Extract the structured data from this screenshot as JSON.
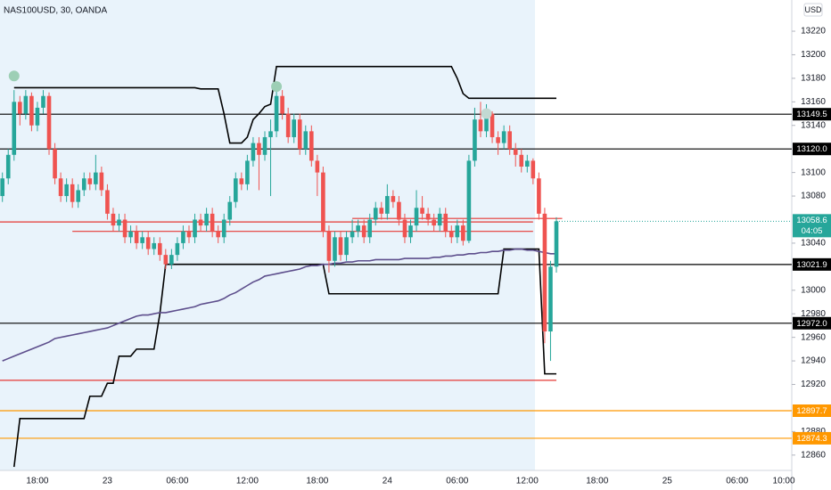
{
  "chart_data": {
    "type": "candlestick",
    "title": "NAS100USD, 30, OANDA",
    "currency": "USD",
    "countdown": "04:05",
    "categories": [
      null,
      null,
      null,
      null,
      null,
      null,
      "18:00",
      null,
      null,
      null,
      null,
      null,
      null,
      null,
      null,
      null,
      null,
      null,
      "23",
      null,
      null,
      null,
      null,
      null,
      null,
      null,
      null,
      null,
      null,
      null,
      "06:00",
      null,
      null,
      null,
      null,
      null,
      null,
      null,
      null,
      null,
      null,
      null,
      "12:00",
      null,
      null,
      null,
      null,
      null,
      null,
      null,
      null,
      null,
      null,
      null,
      "18:00",
      null,
      null,
      null,
      null,
      null,
      null,
      null,
      null,
      null,
      null,
      null,
      "24",
      null,
      null,
      null,
      null,
      null,
      null,
      null,
      null,
      null,
      null,
      null,
      "06:00",
      null,
      null,
      null,
      null,
      null,
      null,
      null,
      null,
      null,
      null,
      null,
      "12:00",
      null,
      null,
      null,
      null,
      null,
      null,
      null,
      null,
      null,
      null,
      null,
      "18:00",
      null,
      null,
      null,
      null,
      null,
      null,
      null,
      null,
      null,
      null,
      null,
      "25",
      null,
      null,
      null,
      null,
      null,
      null,
      null,
      null,
      null,
      null,
      null,
      "06:00",
      null,
      null,
      null,
      null,
      null,
      null,
      null,
      "10:00",
      null
    ],
    "open": [
      13080,
      13095,
      13115,
      13160,
      13150,
      13165,
      13140,
      13155,
      13165,
      13120,
      13095,
      13080,
      13090,
      13075,
      13085,
      13095,
      13090,
      13100,
      13085,
      13065,
      13055,
      13060,
      13045,
      13050,
      13040,
      13045,
      13035,
      13040,
      13030,
      13022,
      13030,
      13040,
      13050,
      13045,
      13060,
      13055,
      13065,
      13050,
      13045,
      13060,
      13075,
      13095,
      13090,
      13110,
      13125,
      13115,
      13130,
      13135,
      13165,
      13150,
      13130,
      13145,
      13120,
      13135,
      13110,
      13100,
      13050,
      13025,
      13045,
      13030,
      13045,
      13050,
      13055,
      13045,
      13060,
      13070,
      13065,
      13080,
      13075,
      13060,
      13045,
      13055,
      13070,
      13065,
      13060,
      13055,
      13065,
      13050,
      13045,
      13055,
      13042,
      13110,
      13145,
      13135,
      13150,
      13130,
      13125,
      13135,
      13120,
      13115,
      13105,
      13110,
      13095,
      13065,
      12965,
      13020,
      null,
      null,
      null,
      null,
      null,
      null,
      null,
      null,
      null,
      null,
      null,
      null,
      null,
      null,
      null,
      null,
      null,
      null,
      null,
      null,
      null,
      null,
      null,
      null,
      null,
      null,
      null,
      null,
      null,
      null,
      null,
      null,
      null,
      null,
      null,
      null,
      null,
      null,
      null,
      null
    ],
    "high": [
      13100,
      13120,
      13170,
      13165,
      13170,
      13168,
      13160,
      13170,
      13168,
      13125,
      13100,
      13095,
      13095,
      13090,
      13100,
      13100,
      13115,
      13105,
      13090,
      13070,
      13065,
      13065,
      13055,
      13055,
      13050,
      13050,
      13045,
      13045,
      13035,
      13035,
      13045,
      13055,
      13055,
      13065,
      13065,
      13070,
      13070,
      13055,
      13065,
      13080,
      13100,
      13100,
      13115,
      13130,
      13130,
      13135,
      13145,
      13175,
      13170,
      13155,
      13150,
      13150,
      13140,
      13140,
      13115,
      13105,
      13055,
      13050,
      13050,
      13050,
      13060,
      13060,
      13060,
      13065,
      13075,
      13075,
      13090,
      13085,
      13080,
      13065,
      13060,
      13085,
      13080,
      13070,
      13065,
      13070,
      13070,
      13055,
      13060,
      13060,
      13115,
      13155,
      13160,
      13158,
      13152,
      13135,
      13140,
      13140,
      13125,
      13120,
      13115,
      13112,
      13100,
      13070,
      13025,
      13062,
      null,
      null,
      null,
      null,
      null,
      null,
      null,
      null,
      null,
      null,
      null,
      null,
      null,
      null,
      null,
      null,
      null,
      null,
      null,
      null,
      null,
      null,
      null,
      null,
      null,
      null,
      null,
      null,
      null,
      null,
      null,
      null,
      null,
      null,
      null,
      null,
      null,
      null,
      null,
      null
    ],
    "low": [
      13075,
      13090,
      13110,
      13140,
      13145,
      13135,
      13135,
      13150,
      13115,
      13090,
      13075,
      13075,
      13070,
      13070,
      13080,
      13085,
      13085,
      13080,
      13060,
      13050,
      13050,
      13040,
      13040,
      13035,
      13035,
      13030,
      13030,
      13025,
      13018,
      13018,
      13025,
      13035,
      13040,
      13040,
      13050,
      13050,
      13045,
      13040,
      13040,
      13055,
      13070,
      13085,
      13085,
      13105,
      13085,
      13110,
      13080,
      13130,
      13145,
      13125,
      13125,
      13115,
      13115,
      13105,
      13080,
      13045,
      13015,
      13020,
      13025,
      13025,
      13040,
      13045,
      13040,
      13040,
      13055,
      13060,
      13060,
      13070,
      13055,
      13040,
      13040,
      13050,
      13060,
      13055,
      13050,
      13050,
      13045,
      13040,
      13040,
      13038,
      13040,
      13105,
      13130,
      13130,
      13125,
      13115,
      13120,
      13115,
      13105,
      13100,
      13100,
      13090,
      13060,
      12955,
      12940,
      13015,
      null,
      null,
      null,
      null,
      null,
      null,
      null,
      null,
      null,
      null,
      null,
      null,
      null,
      null,
      null,
      null,
      null,
      null,
      null,
      null,
      null,
      null,
      null,
      null,
      null,
      null,
      null,
      null,
      null,
      null,
      null,
      null,
      null,
      null,
      null,
      null,
      null,
      null,
      null,
      null
    ],
    "close": [
      13095,
      13115,
      13160,
      13150,
      13165,
      13140,
      13155,
      13165,
      13120,
      13095,
      13080,
      13090,
      13075,
      13085,
      13095,
      13090,
      13100,
      13085,
      13065,
      13055,
      13060,
      13045,
      13050,
      13040,
      13045,
      13035,
      13040,
      13030,
      13022,
      13030,
      13040,
      13050,
      13045,
      13060,
      13055,
      13065,
      13050,
      13045,
      13060,
      13075,
      13095,
      13090,
      13110,
      13125,
      13115,
      13130,
      13135,
      13165,
      13150,
      13130,
      13145,
      13120,
      13135,
      13110,
      13100,
      13050,
      13025,
      13045,
      13030,
      13045,
      13050,
      13055,
      13045,
      13060,
      13070,
      13065,
      13080,
      13075,
      13060,
      13045,
      13055,
      13070,
      13065,
      13060,
      13055,
      13065,
      13050,
      13045,
      13055,
      13042,
      13110,
      13145,
      13135,
      13150,
      13130,
      13125,
      13135,
      13120,
      13115,
      13105,
      13110,
      13095,
      13065,
      12965,
      13020,
      13058.6,
      null,
      null,
      null,
      null,
      null,
      null,
      null,
      null,
      null,
      null,
      null,
      null,
      null,
      null,
      null,
      null,
      null,
      null,
      null,
      null,
      null,
      null,
      null,
      null,
      null,
      null,
      null,
      null,
      null,
      null,
      null,
      null,
      null,
      null,
      null,
      null,
      null,
      null,
      null,
      null
    ],
    "up_color": "#26a69a",
    "down_color": "#ef5350",
    "overlays": [
      {
        "color": "#000000",
        "values": [
          null,
          null,
          13172,
          13172,
          13172,
          13172,
          13172,
          13172,
          13172,
          13172,
          13172,
          13172,
          13172,
          13172,
          13172,
          13172,
          13172,
          13172,
          13172,
          13172,
          13172,
          13172,
          13172,
          13172,
          13172,
          13172,
          13172,
          13172,
          13172,
          13172,
          13172,
          13172,
          13172,
          13172,
          13171,
          13171,
          13171,
          13171,
          13150,
          13125,
          13125,
          13125,
          13130,
          13145,
          13150,
          13156,
          13158,
          13190,
          13190,
          13190,
          13190,
          13190,
          13190,
          13190,
          13190,
          13190,
          13190,
          13190,
          13190,
          13190,
          13190,
          13190,
          13190,
          13190,
          13190,
          13190,
          13190,
          13190,
          13190,
          13190,
          13190,
          13190,
          13190,
          13190,
          13190,
          13190,
          13190,
          13190,
          13180,
          13167,
          13163,
          13163,
          13163,
          13163,
          13163,
          13163,
          13163,
          13163,
          13163,
          13163,
          13163,
          13163,
          13163,
          13163,
          13163,
          13163,
          null,
          null,
          null,
          null,
          null,
          null,
          null,
          null,
          null,
          null,
          null,
          null,
          null,
          null,
          null,
          null,
          null,
          null,
          null,
          null,
          null,
          null,
          null,
          null,
          null,
          null,
          null,
          null,
          null,
          null,
          null,
          null,
          null,
          null,
          null,
          null,
          null,
          null,
          null,
          null
        ]
      },
      {
        "color": "#000000",
        "values": [
          null,
          null,
          12850,
          12891,
          12891,
          12891,
          12891,
          12891,
          12891,
          12891,
          12891,
          12891,
          12891,
          12891,
          12891,
          12910,
          12910,
          12910,
          12921,
          12921,
          12944,
          12944,
          12944,
          12950,
          12950,
          12950,
          12950,
          12980,
          13022,
          13022,
          13022,
          13022,
          13022,
          13022,
          13022,
          13022,
          13022,
          13022,
          13022,
          13022,
          13022,
          13022,
          13022,
          13022,
          13022,
          13022,
          13022,
          13022,
          13022,
          13022,
          13022,
          13022,
          13022,
          13022,
          13022,
          13022,
          12997,
          12997,
          12997,
          12997,
          12997,
          12997,
          12997,
          12997,
          12997,
          12997,
          12997,
          12997,
          12997,
          12997,
          12997,
          12997,
          12997,
          12997,
          12997,
          12997,
          12997,
          12997,
          12997,
          12997,
          12997,
          12997,
          12997,
          12997,
          12997,
          12997,
          13035,
          13035,
          13035,
          13035,
          13035,
          13035,
          13035,
          12929,
          12929,
          12929,
          null,
          null,
          null,
          null,
          null,
          null,
          null,
          null,
          null,
          null,
          null,
          null,
          null,
          null,
          null,
          null,
          null,
          null,
          null,
          null,
          null,
          null,
          null,
          null,
          null,
          null,
          null,
          null,
          null,
          null,
          null,
          null,
          null,
          null,
          null,
          null,
          null,
          null,
          null,
          null
        ]
      },
      {
        "color": "#5d4e8c",
        "values": [
          12940,
          12942,
          12944,
          12946,
          12948,
          12950,
          12952,
          12954,
          12956,
          12959,
          12960,
          12961,
          12962,
          12963,
          12964,
          12965,
          12966,
          12967,
          12968,
          12970,
          12972,
          12974,
          12976,
          12978,
          12979,
          12979,
          12980,
          12981,
          12981,
          12982,
          12983,
          12984,
          12985,
          12986,
          12988,
          12989,
          12990,
          12991,
          12993,
          12996,
          12998,
          13001,
          13004,
          13007,
          13009,
          13012,
          13013,
          13014,
          13015,
          13016,
          13017,
          13018,
          13020,
          13021,
          13021,
          13022,
          13022,
          13023,
          13023,
          13024,
          13024,
          13025,
          13025,
          13025,
          13026,
          13026,
          13026,
          13026,
          13026,
          13027,
          13027,
          13027,
          13027,
          13027,
          13028,
          13028,
          13029,
          13029,
          13030,
          13030,
          13031,
          13031,
          13032,
          13032,
          13033,
          13033,
          13034,
          13034,
          13035,
          13035,
          13034,
          13034,
          13033,
          13032,
          13031,
          13031,
          null,
          null,
          null,
          null,
          null,
          null,
          null,
          null,
          null,
          null,
          null,
          null,
          null,
          null,
          null,
          null,
          null,
          null,
          null,
          null,
          null,
          null,
          null,
          null,
          null,
          null,
          null,
          null,
          null,
          null,
          null,
          null,
          null,
          null,
          null,
          null,
          null,
          null,
          null,
          null
        ]
      }
    ],
    "levels": [
      {
        "value": 13149.5,
        "label": "13149.5",
        "color": "#000000",
        "start": 0
      },
      {
        "value": 13120,
        "label": "13120.0",
        "color": "#000000",
        "start": 0
      },
      {
        "value": 13021.9,
        "label": "13021.9",
        "color": "#000000",
        "start": 29
      },
      {
        "value": 12972,
        "label": "12972.0",
        "color": "#000000",
        "start": 0
      },
      {
        "value": 12897.7,
        "label": "12897.7",
        "color": "#ff9800",
        "start": 0
      },
      {
        "value": 12874.3,
        "label": "12874.3",
        "color": "#ff9800",
        "start": 0
      },
      {
        "value": 13058,
        "color": "#e53935",
        "start": 0,
        "end": 91
      },
      {
        "value": 13050,
        "color": "#e53935",
        "start": 12,
        "end": 91
      },
      {
        "value": 13061,
        "color": "#e53935",
        "start": 60,
        "end": 96
      },
      {
        "value": 12923.5,
        "color": "#e53935",
        "start": 0,
        "end": 95
      }
    ],
    "markers": [
      {
        "index": 2,
        "value": 13182,
        "color": "#9dcfb5"
      },
      {
        "index": 47,
        "value": 13173,
        "color": "#9dcfb5"
      },
      {
        "index": 83,
        "value": 13150,
        "color": "#c2d9d3"
      }
    ],
    "ylim": [
      12847,
      13246.5
    ],
    "yticks": [
      13220,
      13200,
      13180,
      13160,
      13140,
      13100,
      13080,
      13040,
      13000,
      12980,
      12960,
      12940,
      12920,
      12880,
      12860
    ]
  }
}
